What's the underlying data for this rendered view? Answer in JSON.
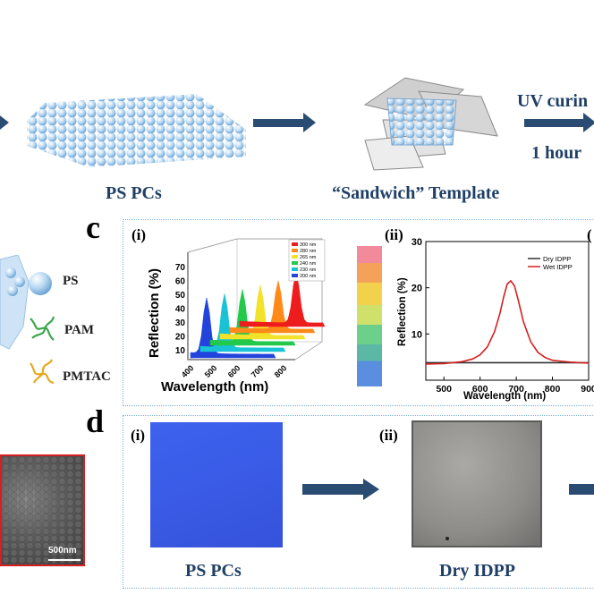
{
  "top_row": {
    "ps_pcs_label": "PS PCs",
    "sandwich_label": "“Sandwich”  Template",
    "uv_label": "UV curin",
    "hour_label": "1 hour"
  },
  "panel_c": {
    "letter": "c",
    "sub_i": "(i)",
    "sub_ii": "(ii)",
    "sub_iii": "(",
    "i_chart": {
      "ylabel": "Reflection (%)",
      "xlabel": "Wavelength (nm)",
      "yticks": [
        "10",
        "20",
        "30",
        "40",
        "50",
        "60",
        "70"
      ],
      "xticks": [
        "400",
        "500",
        "600",
        "700",
        "800"
      ],
      "legend": [
        "300 nm",
        "280 nm",
        "265 nm",
        "240 nm",
        "230 nm",
        "200 nm"
      ]
    }
  },
  "panel_d": {
    "letter": "d",
    "sub_i": "(i)",
    "sub_ii": "(ii)",
    "ps_pcs_caption": "PS PCs",
    "dry_caption": "Dry IDPP"
  },
  "legend_left": {
    "ps": "PS",
    "pam": "PAM",
    "pmtac": "PMTAC"
  },
  "sem_scale": "500nm",
  "colors": {
    "navy": "#1f3f66",
    "arrow": "#2a4c73",
    "dry": "#333333",
    "wet": "#d42020",
    "blue_film": "#3b5ee8"
  },
  "chart_data": [
    {
      "type": "line",
      "title": "",
      "xlabel": "Wavelength (nm)",
      "ylabel": "Reflection (%)",
      "xlim": [
        450,
        900
      ],
      "ylim": [
        0,
        30
      ],
      "xticks": [
        500,
        600,
        700,
        800,
        900
      ],
      "yticks": [
        10,
        20,
        30
      ],
      "legend_position": "top-right",
      "series": [
        {
          "name": "Dry IDPP",
          "color": "#333333",
          "x": [
            450,
            500,
            550,
            600,
            650,
            700,
            750,
            800,
            850,
            900
          ],
          "y": [
            3.8,
            3.8,
            3.8,
            3.8,
            3.8,
            3.8,
            3.8,
            3.8,
            3.8,
            3.8
          ]
        },
        {
          "name": "Wet IDPP",
          "color": "#d42020",
          "x": [
            450,
            500,
            550,
            580,
            600,
            620,
            640,
            655,
            665,
            675,
            685,
            695,
            705,
            720,
            740,
            760,
            780,
            800,
            850,
            900
          ],
          "y": [
            3.5,
            3.6,
            4.0,
            4.6,
            5.5,
            7.2,
            10.5,
            14.5,
            18.0,
            20.8,
            21.5,
            20.4,
            17.5,
            12.6,
            8.3,
            6.0,
            4.9,
            4.3,
            3.9,
            3.7
          ]
        }
      ]
    }
  ]
}
